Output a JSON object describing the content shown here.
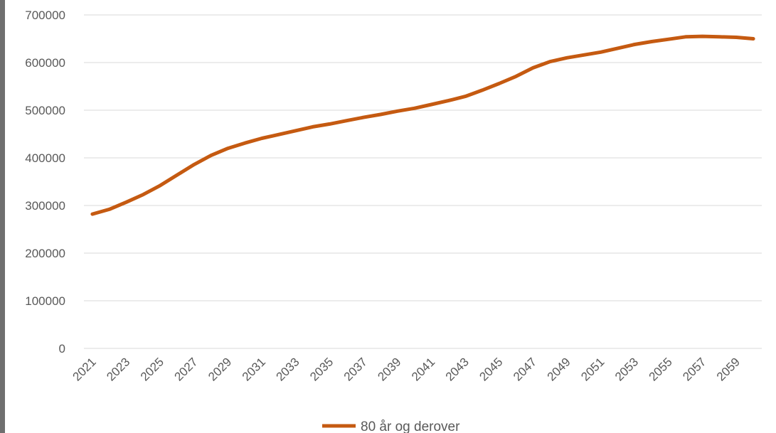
{
  "chart_data": {
    "type": "line",
    "title": "",
    "xlabel": "",
    "ylabel": "",
    "ylim": [
      0,
      700000
    ],
    "yticks": [
      0,
      100000,
      200000,
      300000,
      400000,
      500000,
      600000,
      700000
    ],
    "xtick_labels": [
      "2021",
      "2023",
      "2025",
      "2027",
      "2029",
      "2031",
      "2033",
      "2035",
      "2037",
      "2039",
      "2041",
      "2043",
      "2045",
      "2047",
      "2049",
      "2051",
      "2053",
      "2055",
      "2057",
      "2059"
    ],
    "grid": "horizontal",
    "legend_position": "bottom-center",
    "x": [
      2021,
      2022,
      2023,
      2024,
      2025,
      2026,
      2027,
      2028,
      2029,
      2030,
      2031,
      2032,
      2033,
      2034,
      2035,
      2036,
      2037,
      2038,
      2039,
      2040,
      2041,
      2042,
      2043,
      2044,
      2045,
      2046,
      2047,
      2048,
      2049,
      2050,
      2051,
      2052,
      2053,
      2054,
      2055,
      2056,
      2057,
      2058,
      2059,
      2060
    ],
    "series": [
      {
        "name": "80 år og derover",
        "color": "#c55a11",
        "values": [
          282000,
          292000,
          307000,
          323000,
          342000,
          364000,
          386000,
          405000,
          420000,
          431000,
          441000,
          449000,
          457000,
          465000,
          471000,
          478000,
          485000,
          491000,
          498000,
          504000,
          512000,
          520000,
          529000,
          542000,
          556000,
          571000,
          589000,
          602000,
          610000,
          616000,
          622000,
          630000,
          638000,
          644000,
          649000,
          654000,
          655000,
          654000,
          653000,
          650000
        ]
      }
    ]
  }
}
